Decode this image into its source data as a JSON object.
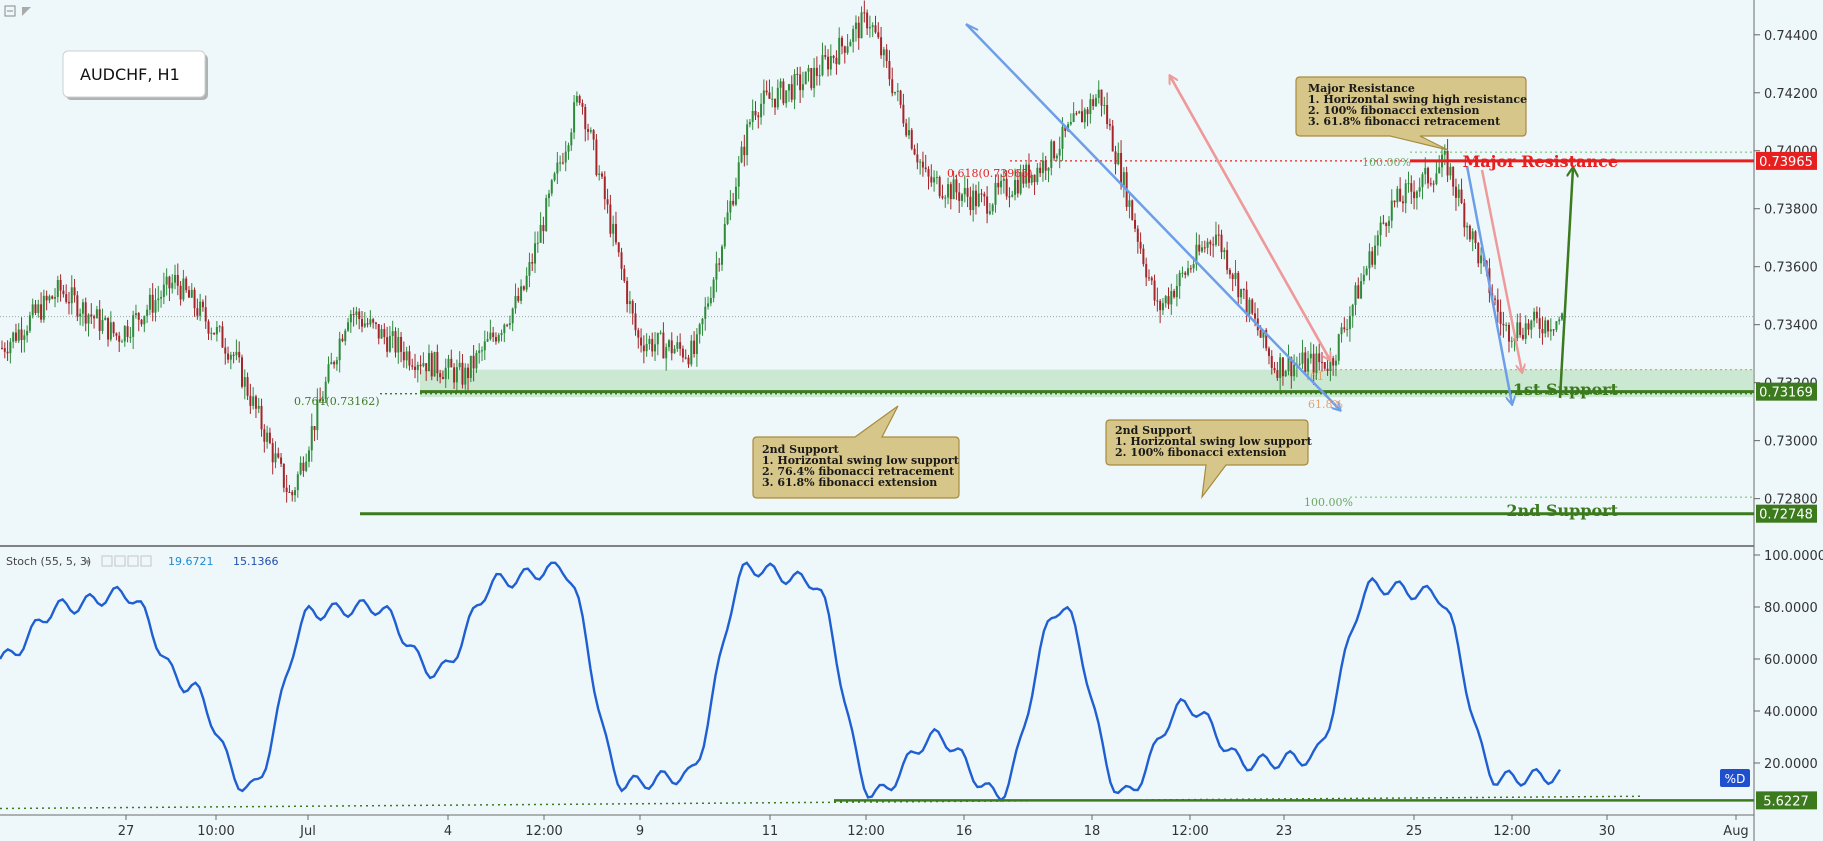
{
  "symbol_label": "AUDCHF, H1",
  "colors": {
    "background": "#eef8fb",
    "up_candle": "#2e8b3a",
    "down_candle": "#a5262a",
    "stoch_line": "#1f5fd1",
    "resistance": "#e81f1f",
    "support": "#3c7a1e",
    "zone": "#9fd49f",
    "callout_fill": "#d6c68a",
    "callout_stroke": "#a88b3c",
    "blue_arrow": "#6d9ee8",
    "pink_arrow": "#ee9a9a",
    "green_arrow": "#3c7a1e"
  },
  "price_axis": {
    "ticks": [
      "0.74400",
      "0.74200",
      "0.74000",
      "0.73800",
      "0.73600",
      "0.73400",
      "0.73200",
      "0.73000",
      "0.72800"
    ],
    "tick_values": [
      0.744,
      0.742,
      0.74,
      0.738,
      0.736,
      0.734,
      0.732,
      0.73,
      0.728
    ]
  },
  "time_axis": {
    "labels": [
      "27",
      "10:00",
      "Jul",
      "4",
      "12:00",
      "9",
      "11",
      "12:00",
      "16",
      "18",
      "12:00",
      "23",
      "25",
      "12:00",
      "30",
      "Aug"
    ]
  },
  "levels": {
    "major_resistance": {
      "label": "Major Resistance",
      "value": "0.73965",
      "price": 0.73965
    },
    "first_support": {
      "label": "1st Support",
      "value": "0.73169",
      "price": 0.73169
    },
    "second_support": {
      "label": "2nd Support",
      "value": "0.72748",
      "price": 0.72748
    }
  },
  "fib_labels": {
    "fib_618": "0.618(0.73965)",
    "fib_764": "0.764(0.73162)",
    "fib_100_top": "100.00%",
    "fib_100_bottom": "100.00%",
    "fib_61_a": "61",
    "fib_61_b": "61.8%"
  },
  "callouts": {
    "resistance": {
      "title": "Major Resistance",
      "lines": [
        "1. Horizontal swing high resistance",
        "2. 100% fibonacci extension",
        "3. 61.8% fibonacci retracement"
      ]
    },
    "support_left": {
      "title": "2nd Support",
      "lines": [
        "1. Horizontal swing low support",
        "2. 76.4% fibonacci retracement",
        "3. 61.8% fibonacci extension"
      ]
    },
    "support_right": {
      "title": "2nd Support",
      "lines": [
        "1. Horizontal swing low support",
        "2. 100% fibonacci extension"
      ]
    }
  },
  "stoch": {
    "title": "Stoch (55, 5, 3)",
    "value_k": "19.6721",
    "value_d": "15.1366",
    "ticks": [
      "100.0000",
      "80.0000",
      "60.0000",
      "40.0000",
      "20.0000"
    ],
    "tick_values": [
      100,
      80,
      60,
      40,
      20
    ],
    "d_badge": "%D",
    "support_value": "5.6227",
    "support_level": 5.6227
  },
  "chart_data": {
    "type": "line",
    "symbol": "AUDCHF",
    "timeframe": "H1",
    "price_path": [
      {
        "x": "Jun 26",
        "y": 0.7332
      },
      {
        "x": "Jun 27",
        "y": 0.7352
      },
      {
        "x": "Jun 28",
        "y": 0.7336
      },
      {
        "x": "Jun 29",
        "y": 0.7355
      },
      {
        "x": "Jul 1",
        "y": 0.733
      },
      {
        "x": "Jul 3",
        "y": 0.728
      },
      {
        "x": "Jul 4",
        "y": 0.7345
      },
      {
        "x": "Jul 5",
        "y": 0.733
      },
      {
        "x": "Jul 6",
        "y": 0.7322
      },
      {
        "x": "Jul 8",
        "y": 0.735
      },
      {
        "x": "Jul 10",
        "y": 0.742
      },
      {
        "x": "Jul 11",
        "y": 0.7335
      },
      {
        "x": "Jul 12",
        "y": 0.733
      },
      {
        "x": "Jul 13",
        "y": 0.7415
      },
      {
        "x": "Jul 15",
        "y": 0.7425
      },
      {
        "x": "Jul 16",
        "y": 0.7446
      },
      {
        "x": "Jul 17",
        "y": 0.739
      },
      {
        "x": "Jul 18",
        "y": 0.7382
      },
      {
        "x": "Jul 19",
        "y": 0.7395
      },
      {
        "x": "Jul 20",
        "y": 0.742
      },
      {
        "x": "Jul 21",
        "y": 0.7345
      },
      {
        "x": "Jul 22",
        "y": 0.7372
      },
      {
        "x": "Jul 23",
        "y": 0.7326
      },
      {
        "x": "Jul 24",
        "y": 0.7327
      },
      {
        "x": "Jul 25",
        "y": 0.738
      },
      {
        "x": "Jul 26",
        "y": 0.7396
      },
      {
        "x": "Jul 27",
        "y": 0.7338
      },
      {
        "x": "Jul 28",
        "y": 0.7342
      }
    ],
    "stoch_d_path": [
      {
        "x": "Jun 26",
        "y": 60
      },
      {
        "x": "Jun 27",
        "y": 80
      },
      {
        "x": "Jun 28",
        "y": 85
      },
      {
        "x": "Jun 29",
        "y": 50
      },
      {
        "x": "Jul 3",
        "y": 10
      },
      {
        "x": "Jul 4",
        "y": 78
      },
      {
        "x": "Jul 5",
        "y": 80
      },
      {
        "x": "Jul 8",
        "y": 55
      },
      {
        "x": "Jul 9",
        "y": 90
      },
      {
        "x": "Jul 10",
        "y": 95
      },
      {
        "x": "Jul 11",
        "y": 12
      },
      {
        "x": "Jul 12",
        "y": 15
      },
      {
        "x": "Jul 15",
        "y": 95
      },
      {
        "x": "Jul 16",
        "y": 90
      },
      {
        "x": "Jul 17",
        "y": 8
      },
      {
        "x": "Jul 18",
        "y": 30
      },
      {
        "x": "Jul 19",
        "y": 8
      },
      {
        "x": "Jul 20",
        "y": 80
      },
      {
        "x": "Jul 21",
        "y": 8
      },
      {
        "x": "Jul 22",
        "y": 42
      },
      {
        "x": "Jul 23",
        "y": 20
      },
      {
        "x": "Jul 24",
        "y": 22
      },
      {
        "x": "Jul 25",
        "y": 88
      },
      {
        "x": "Jul 26",
        "y": 85
      },
      {
        "x": "Jul 27",
        "y": 14
      },
      {
        "x": "Jul 28",
        "y": 15
      }
    ],
    "ylim_price": [
      0.7264,
      0.7452
    ],
    "ylim_stoch": [
      0,
      100
    ],
    "grid": false
  }
}
